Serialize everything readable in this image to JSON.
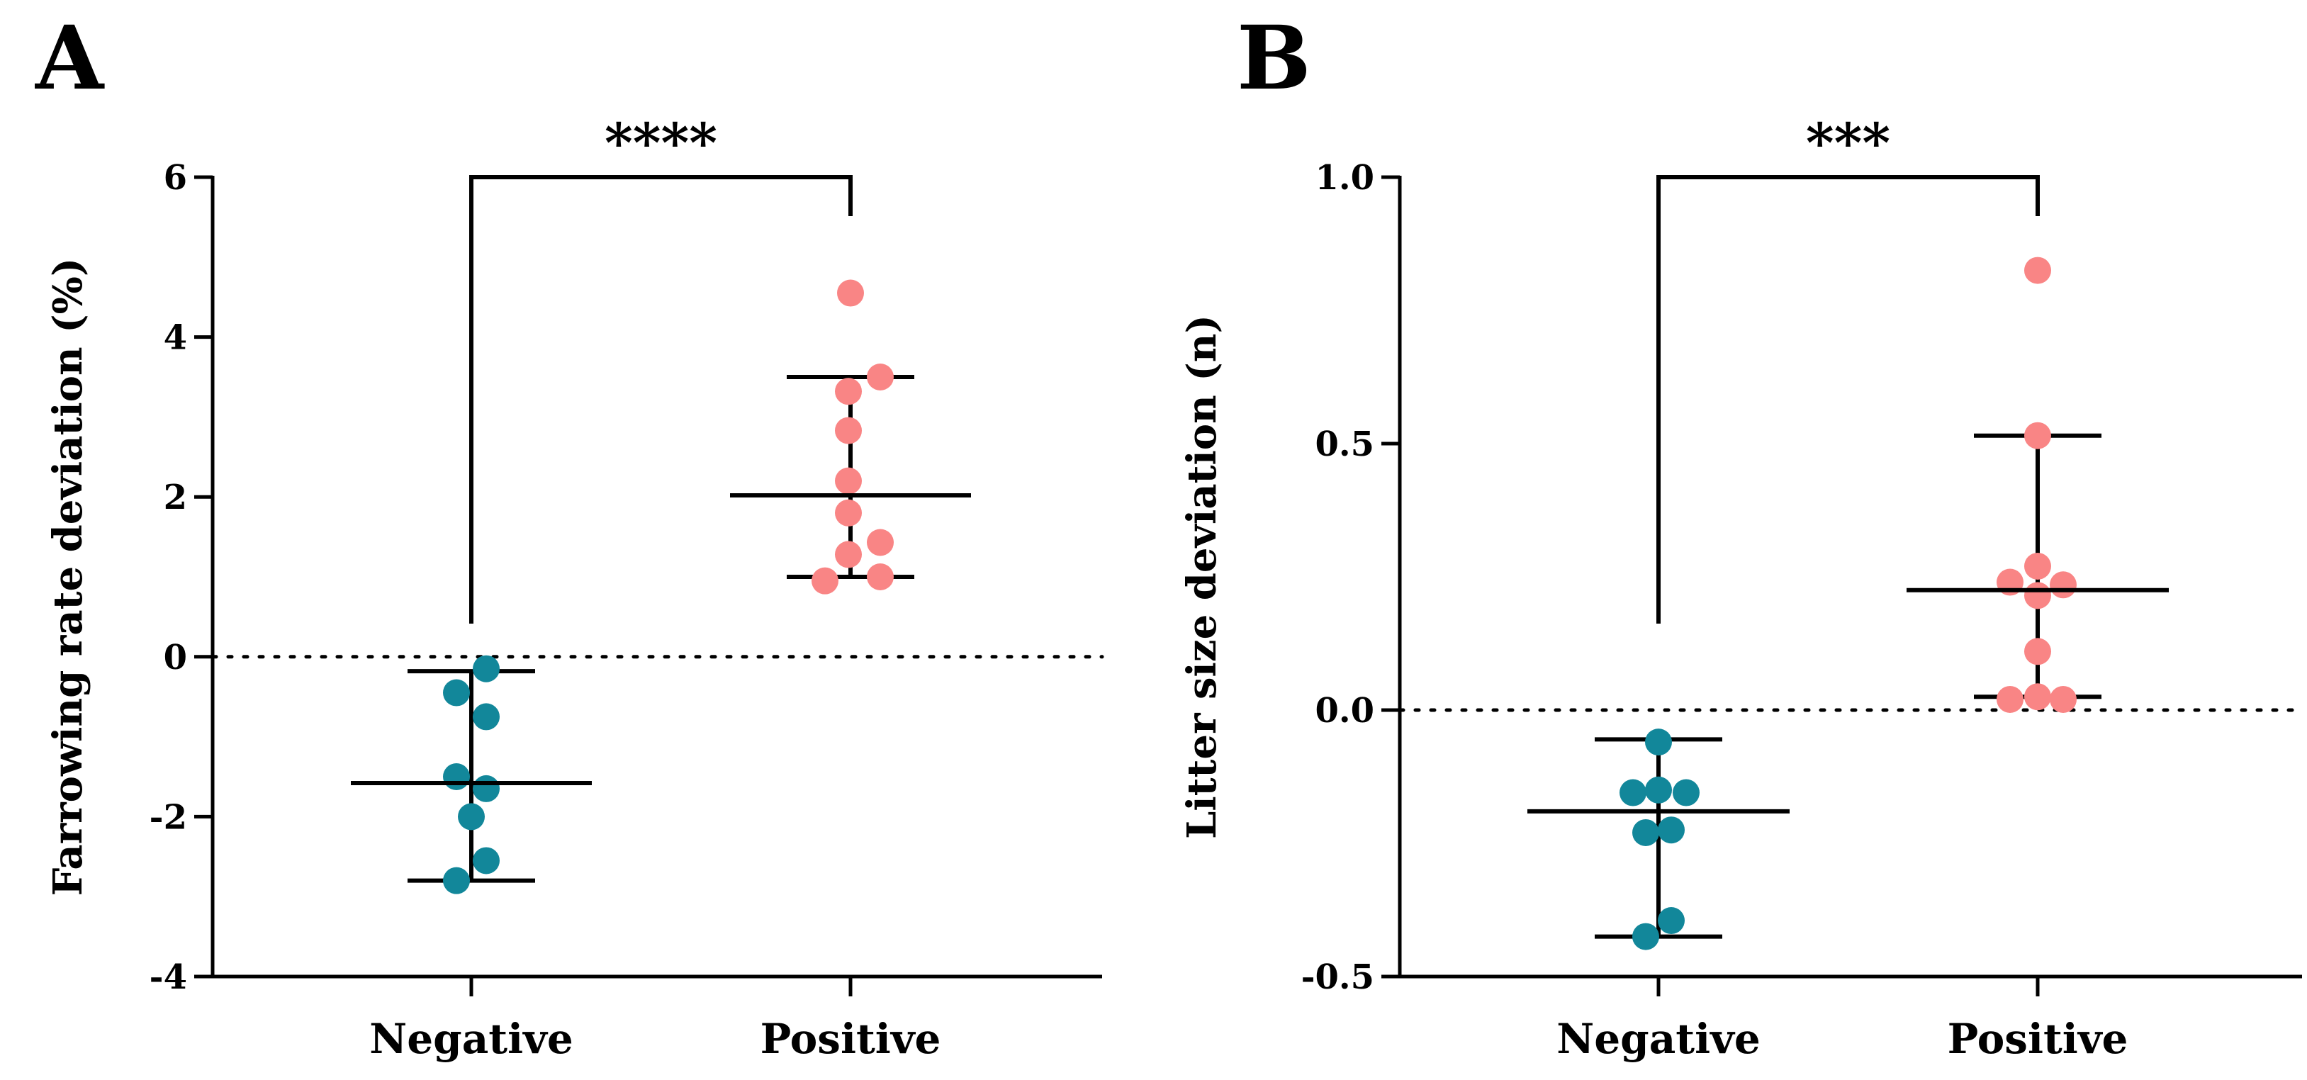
{
  "colors": {
    "negative": "#12879A",
    "positive": "#F98585",
    "axis": "#000000"
  },
  "chart_data": [
    {
      "type": "scatter",
      "panel": "A",
      "title": "",
      "xlabel": "",
      "ylabel": "Farrowing rate deviation (%)",
      "ylim": [
        -4,
        6
      ],
      "yticks": [
        -4,
        -2,
        0,
        2,
        4,
        6
      ],
      "ytick_labels": [
        "-4",
        "-2",
        "0",
        "2",
        "4",
        "6"
      ],
      "categories": [
        "Negative",
        "Positive"
      ],
      "reference_line": 0,
      "significance": "****",
      "series": [
        {
          "name": "Negative",
          "points": [
            [
              -0.35,
              -0.45
            ],
            [
              0.35,
              -0.15
            ],
            [
              0.35,
              -0.75
            ],
            [
              -0.35,
              -1.5
            ],
            [
              0.35,
              -1.65
            ],
            [
              0.0,
              -2.0
            ],
            [
              0.35,
              -2.55
            ],
            [
              -0.35,
              -2.8
            ]
          ],
          "median": -1.58,
          "iqr": [
            -2.8,
            -0.18
          ]
        },
        {
          "name": "Positive",
          "points": [
            [
              0.0,
              4.55
            ],
            [
              -0.05,
              3.32
            ],
            [
              0.7,
              3.5
            ],
            [
              -0.05,
              2.83
            ],
            [
              -0.05,
              2.2
            ],
            [
              -0.05,
              1.8
            ],
            [
              0.7,
              1.43
            ],
            [
              -0.05,
              1.28
            ],
            [
              -0.6,
              0.95
            ],
            [
              0.7,
              1.0
            ]
          ],
          "median": 2.02,
          "iqr": [
            1.0,
            3.5
          ]
        }
      ]
    },
    {
      "type": "scatter",
      "panel": "B",
      "title": "",
      "xlabel": "",
      "ylabel": "Litter size deviation (n)",
      "ylim": [
        -0.5,
        1.0
      ],
      "yticks": [
        -0.5,
        0.0,
        0.5,
        1.0
      ],
      "ytick_labels": [
        "-0.5",
        "0.0",
        "0.5",
        "1.0"
      ],
      "categories": [
        "Negative",
        "Positive"
      ],
      "reference_line": 0,
      "significance": "***",
      "series": [
        {
          "name": "Negative",
          "points": [
            [
              0.0,
              -0.06
            ],
            [
              -0.6,
              -0.155
            ],
            [
              0.0,
              -0.15
            ],
            [
              0.65,
              -0.155
            ],
            [
              -0.3,
              -0.23
            ],
            [
              0.3,
              -0.225
            ],
            [
              0.3,
              -0.395
            ],
            [
              -0.3,
              -0.425
            ]
          ],
          "median": -0.19,
          "iqr": [
            -0.425,
            -0.055
          ]
        },
        {
          "name": "Positive",
          "points": [
            [
              0.0,
              0.825
            ],
            [
              0.0,
              0.515
            ],
            [
              -0.65,
              0.24
            ],
            [
              0.0,
              0.27
            ],
            [
              0.0,
              0.215
            ],
            [
              0.6,
              0.235
            ],
            [
              0.0,
              0.11
            ],
            [
              -0.65,
              0.02
            ],
            [
              0.0,
              0.025
            ],
            [
              0.6,
              0.02
            ]
          ],
          "median": 0.225,
          "iqr": [
            0.025,
            0.515
          ]
        }
      ]
    }
  ]
}
